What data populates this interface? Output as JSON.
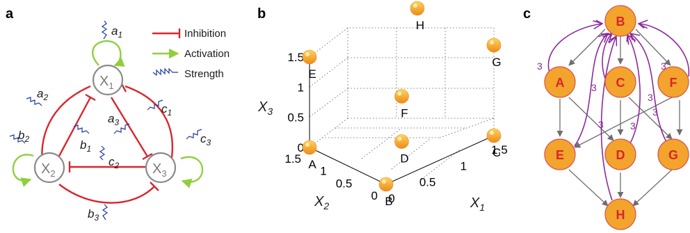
{
  "panels": {
    "a": "a",
    "b": "b",
    "c": "c"
  },
  "panel_a": {
    "nodes": {
      "x1": "X",
      "x1_sub": "1",
      "x2": "X",
      "x2_sub": "2",
      "x3": "X",
      "x3_sub": "3"
    },
    "params": {
      "a1": "a",
      "a1_sub": "1",
      "a2": "a",
      "a2_sub": "2",
      "a3": "a",
      "a3_sub": "3",
      "b1": "b",
      "b1_sub": "1",
      "b2": "b",
      "b2_sub": "2",
      "b3": "b",
      "b3_sub": "3",
      "c1": "c",
      "c1_sub": "1",
      "c2": "c",
      "c2_sub": "2",
      "c3": "c",
      "c3_sub": "3"
    },
    "legend": {
      "inhibition": "Inhibition",
      "activation": "Activation",
      "strength": "Strength"
    },
    "colors": {
      "inhibition": "#d8262c",
      "activation": "#8fcf3c",
      "strength": "#1e3a9a"
    }
  },
  "panel_b": {
    "chart_data": {
      "type": "scatter",
      "subtype": "3d",
      "xlabel": "X",
      "xlabel_sub": "1",
      "ylabel": "X",
      "ylabel_sub": "2",
      "zlabel": "X",
      "zlabel_sub": "3",
      "x_ticks": [
        "0",
        "0.5",
        "1",
        "1.5"
      ],
      "y_ticks": [
        "0",
        "0.5",
        "1",
        "1.5"
      ],
      "z_ticks": [
        "0",
        "0.5",
        "1",
        "1.5"
      ],
      "xlim": [
        0,
        1.5
      ],
      "ylim": [
        0,
        1.5
      ],
      "zlim": [
        0,
        1.5
      ],
      "grid": true,
      "points": [
        {
          "label": "A",
          "x": 0,
          "y": 1.5,
          "z": 0
        },
        {
          "label": "B",
          "x": 0,
          "y": 0,
          "z": 0
        },
        {
          "label": "C",
          "x": 1.5,
          "y": 0,
          "z": 0
        },
        {
          "label": "D",
          "x": 0.75,
          "y": 0.75,
          "z": 0
        },
        {
          "label": "E",
          "x": 0,
          "y": 1.5,
          "z": 1.5
        },
        {
          "label": "F",
          "x": 0.75,
          "y": 0.75,
          "z": 0.75
        },
        {
          "label": "G",
          "x": 1.5,
          "y": 0,
          "z": 1.5
        },
        {
          "label": "H",
          "x": 1.5,
          "y": 1.5,
          "z": 1.5
        }
      ],
      "marker_color": "#f2a42c"
    }
  },
  "panel_c": {
    "nodes": [
      "B",
      "A",
      "C",
      "F",
      "E",
      "D",
      "G",
      "H"
    ],
    "edge_labels": [
      "3",
      "3",
      "3",
      "3",
      "3",
      "3",
      "3"
    ],
    "colors": {
      "node_fill": "#f2a42c",
      "node_text": "#d7262c",
      "edge": "#6e6e6e",
      "feedback": "#8a2a9a"
    }
  }
}
